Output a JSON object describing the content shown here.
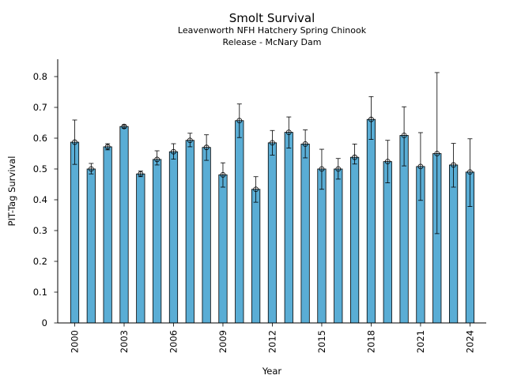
{
  "chart_data": {
    "type": "bar",
    "title": "Smolt Survival",
    "subtitle_line1": "Leavenworth NFH Hatchery Spring Chinook",
    "subtitle_line2": "Release - McNary Dam",
    "xlabel": "Year",
    "ylabel": "PIT-Tag Survival",
    "ylim": [
      0,
      0.85
    ],
    "yticks": [
      "0",
      "0.1",
      "0.2",
      "0.3",
      "0.4",
      "0.5",
      "0.6",
      "0.7",
      "0.8"
    ],
    "xticks": [
      "2000",
      "2003",
      "2006",
      "2009",
      "2012",
      "2015",
      "2018",
      "2021",
      "2024"
    ],
    "bar_color": "#5aadd5",
    "categories": [
      2000,
      2001,
      2002,
      2003,
      2004,
      2005,
      2006,
      2007,
      2008,
      2009,
      2010,
      2011,
      2012,
      2013,
      2014,
      2015,
      2016,
      2017,
      2018,
      2019,
      2020,
      2021,
      2022,
      2023,
      2024
    ],
    "values": [
      0.587,
      0.5,
      0.572,
      0.638,
      0.484,
      0.531,
      0.556,
      0.593,
      0.57,
      0.481,
      0.657,
      0.434,
      0.585,
      0.619,
      0.581,
      0.5,
      0.5,
      0.538,
      0.661,
      0.524,
      0.609,
      0.508,
      0.55,
      0.513,
      0.49
    ],
    "err_low": [
      0.515,
      0.484,
      0.562,
      0.633,
      0.475,
      0.513,
      0.532,
      0.572,
      0.528,
      0.441,
      0.602,
      0.392,
      0.545,
      0.568,
      0.536,
      0.434,
      0.467,
      0.516,
      0.596,
      0.455,
      0.51,
      0.398,
      0.29,
      0.441,
      0.378
    ],
    "err_high": [
      0.659,
      0.518,
      0.582,
      0.643,
      0.493,
      0.559,
      0.582,
      0.616,
      0.611,
      0.52,
      0.711,
      0.475,
      0.625,
      0.669,
      0.627,
      0.564,
      0.534,
      0.581,
      0.735,
      0.593,
      0.702,
      0.618,
      0.813,
      0.583,
      0.598
    ]
  }
}
